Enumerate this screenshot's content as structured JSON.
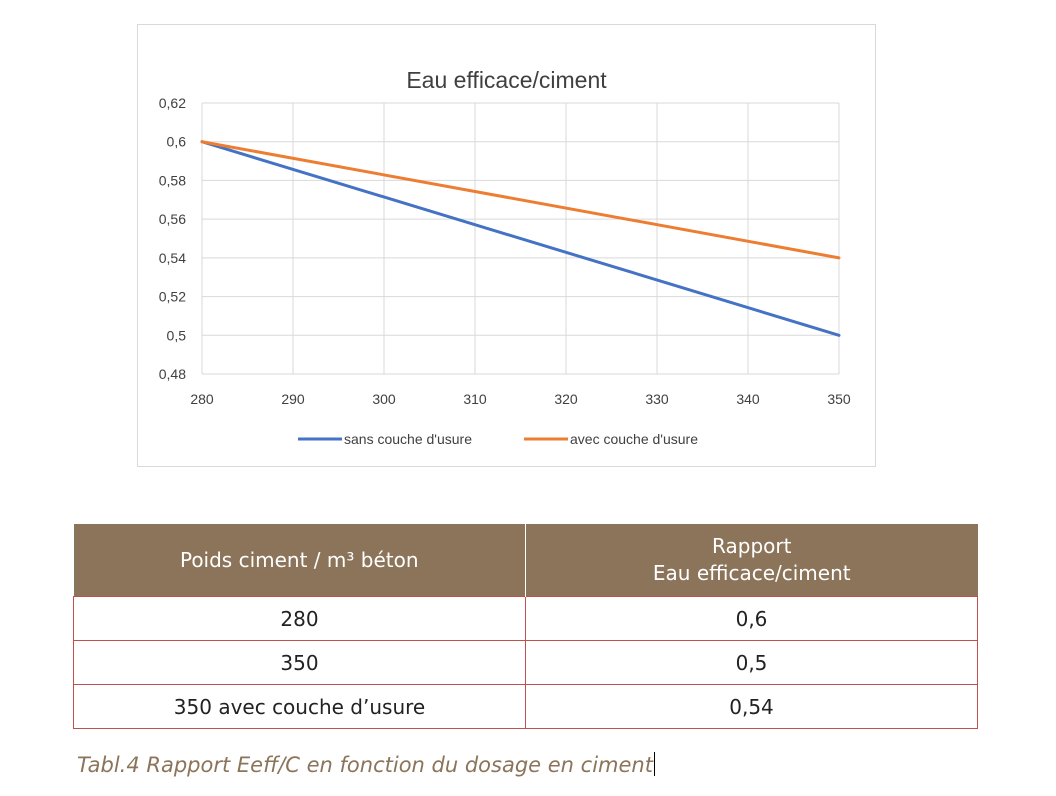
{
  "chart_data": {
    "type": "line",
    "title": "Eau efficace/ciment",
    "xlabel": "",
    "ylabel": "",
    "x": [
      280,
      350
    ],
    "xlim": [
      280,
      350
    ],
    "ylim": [
      0.48,
      0.62
    ],
    "x_ticks": [
      "280",
      "290",
      "300",
      "310",
      "320",
      "330",
      "340",
      "350"
    ],
    "y_ticks": [
      "0,48",
      "0,5",
      "0,52",
      "0,54",
      "0,56",
      "0,58",
      "0,6",
      "0,62"
    ],
    "grid": true,
    "legend_position": "bottom",
    "series": [
      {
        "name": "sans couche d'usure",
        "x": [
          280,
          350
        ],
        "values": [
          0.6,
          0.5
        ],
        "color": "#4472c4"
      },
      {
        "name": "avec couche d'usure",
        "x": [
          280,
          350
        ],
        "values": [
          0.6,
          0.54
        ],
        "color": "#ed7d31"
      }
    ]
  },
  "table": {
    "headers": [
      "Poids ciment / m³ béton",
      "Rapport\nEau efficace/ciment"
    ],
    "header_line1": "Poids ciment / m³ béton",
    "header2_line1": "Rapport",
    "header2_line2": "Eau efficace/ciment",
    "rows": [
      [
        "280",
        "0,6"
      ],
      [
        "350",
        "0,5"
      ],
      [
        "350 avec couche d’usure",
        "0,54"
      ]
    ]
  },
  "caption": "Tabl.4 Rapport Eeff/C en fonction du dosage en ciment",
  "colors": {
    "header_bg": "#8b7459",
    "row_border": "#c0504d",
    "caption": "#8b7459"
  }
}
